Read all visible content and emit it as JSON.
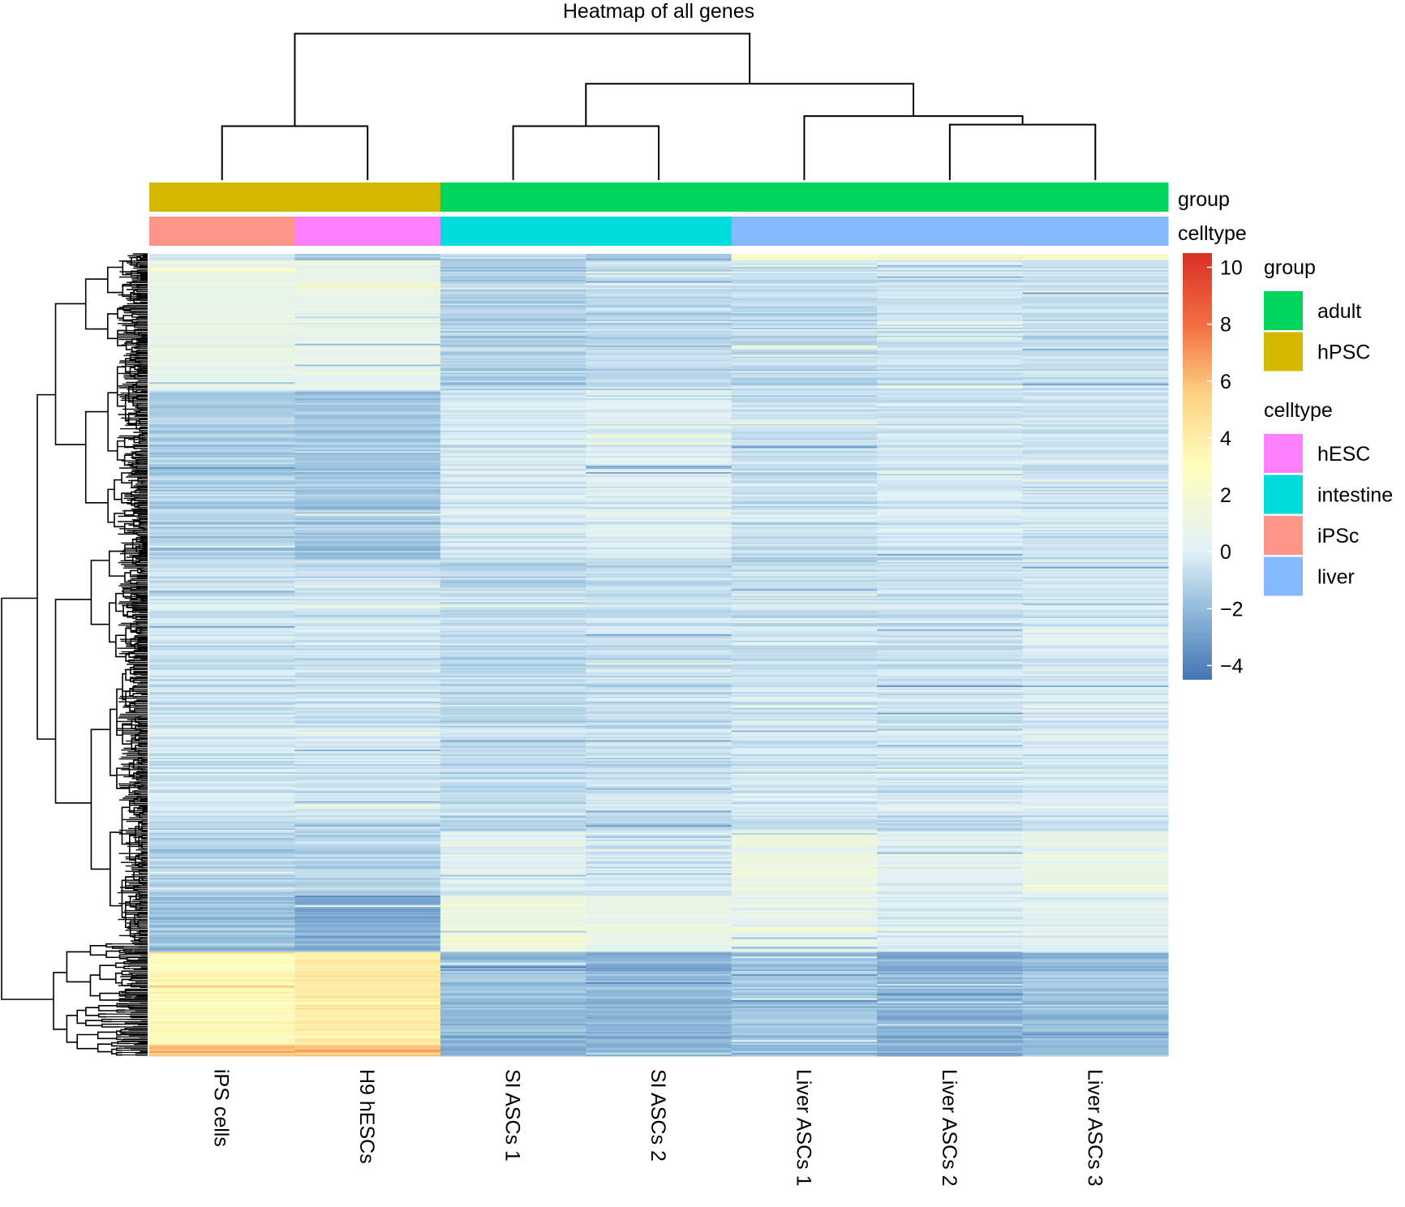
{
  "chart_data": {
    "type": "heatmap",
    "title": "Heatmap of all genes",
    "columns": [
      "iPS cells",
      "H9 hESCs",
      "SI ASCs 1",
      "SI ASCs 2",
      "Liver ASCs 1",
      "Liver ASCs 2",
      "Liver ASCs 3"
    ],
    "annotations": {
      "group": {
        "label": "group",
        "values": [
          "hPSC",
          "hPSC",
          "adult",
          "adult",
          "adult",
          "adult",
          "adult"
        ]
      },
      "celltype": {
        "label": "celltype",
        "values": [
          "iPSc",
          "hESC",
          "intestine",
          "intestine",
          "liver",
          "liver",
          "liver"
        ]
      }
    },
    "annotation_colors": {
      "group": {
        "adult": "#00d65c",
        "hPSC": "#d4b800"
      },
      "celltype": {
        "hESC": "#ff80ff",
        "intestine": "#00dcdc",
        "iPSc": "#ff9488",
        "liver": "#84b8ff"
      }
    },
    "legends": {
      "group": {
        "title": "group",
        "items": [
          "adult",
          "hPSC"
        ]
      },
      "celltype": {
        "title": "celltype",
        "items": [
          "hESC",
          "intestine",
          "iPSc",
          "liver"
        ]
      }
    },
    "color_scale": {
      "range": [
        -4.5,
        10.5
      ],
      "ticks": [
        10,
        8,
        6,
        4,
        2,
        0,
        -2,
        -4
      ],
      "tick_labels": [
        "10",
        "8",
        "6",
        "4",
        "2",
        "0",
        "−2",
        "−4"
      ],
      "stops": [
        {
          "value": -4.5,
          "color": "#4574b4"
        },
        {
          "value": -2,
          "color": "#91bcdb"
        },
        {
          "value": 0,
          "color": "#e1f1f7"
        },
        {
          "value": 3,
          "color": "#fefebe"
        },
        {
          "value": 5.5,
          "color": "#fdd384"
        },
        {
          "value": 8,
          "color": "#f46d43"
        },
        {
          "value": 10.5,
          "color": "#d73027"
        }
      ]
    },
    "column_dendrogram": {
      "order": [
        "iPS cells",
        "H9 hESCs",
        "SI ASCs 1",
        "SI ASCs 2",
        "Liver ASCs 1",
        "Liver ASCs 2",
        "Liver ASCs 3"
      ],
      "merges": [
        {
          "children": [
            "iPS cells",
            "H9 hESCs"
          ],
          "height": 0.7
        },
        {
          "children": [
            "SI ASCs 1",
            "SI ASCs 2"
          ],
          "height": 0.7
        },
        {
          "children": [
            "Liver ASCs 2",
            "Liver ASCs 3"
          ],
          "height": 0.72
        },
        {
          "children": [
            "Liver ASCs 1",
            "Liver ASCs 2+3"
          ],
          "height": 0.83
        },
        {
          "children": [
            "SI ASCs",
            "Liver ASCs"
          ],
          "height": 1.25
        },
        {
          "children": [
            "hPSC",
            "adult"
          ],
          "height": 1.9
        }
      ]
    },
    "row_blocks": [
      {
        "rows": "1-8",
        "values": [
          -0.5,
          -1.5,
          -1.0,
          -1.6,
          2.5,
          1.5,
          2.0
        ]
      },
      {
        "rows": "9-170",
        "values": [
          0.8,
          0.7,
          -1.2,
          -0.9,
          -0.8,
          -0.5,
          -0.6
        ]
      },
      {
        "rows": "171-380",
        "values": [
          -1.3,
          -1.6,
          -0.3,
          0.0,
          -0.6,
          -0.4,
          -0.5
        ]
      },
      {
        "rows": "381-720",
        "values": [
          -0.5,
          -0.6,
          -0.9,
          -0.7,
          -0.5,
          -0.5,
          -0.3
        ]
      },
      {
        "rows": "721-800",
        "values": [
          -1.0,
          -1.1,
          0.3,
          -0.2,
          1.2,
          0.3,
          0.9
        ]
      },
      {
        "rows": "801-870",
        "values": [
          -1.8,
          -2.5,
          1.3,
          0.7,
          0.6,
          0.0,
          0.3
        ]
      },
      {
        "rows": "871-985",
        "values": [
          3.2,
          4.0,
          -2.0,
          -2.2,
          -1.6,
          -2.3,
          -1.8
        ]
      },
      {
        "rows": "986-1000",
        "values": [
          6.0,
          5.5,
          -2.5,
          -2.2,
          -2.0,
          -2.5,
          -2.0
        ]
      }
    ],
    "row_count": 1000,
    "row_dendrogram": "hierarchical clustering of all genes (rows)",
    "legend_placement": "right"
  }
}
